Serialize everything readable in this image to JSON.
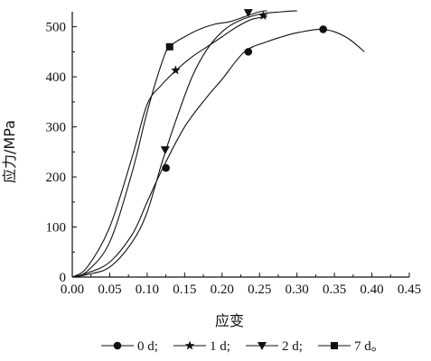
{
  "chart_data": {
    "type": "line",
    "xlabel": "应变",
    "ylabel": "应力/MPa",
    "xlim": [
      0,
      0.45
    ],
    "ylim": [
      0,
      530
    ],
    "x_ticks": [
      "0.00",
      "0.05",
      "0.10",
      "0.15",
      "0.20",
      "0.25",
      "0.30",
      "0.35",
      "0.40",
      "0.45"
    ],
    "y_ticks": [
      "0",
      "100",
      "200",
      "300",
      "400",
      "500"
    ],
    "grid": false,
    "legend_position": "bottom",
    "legend_suffix": "。",
    "series": [
      {
        "name": "0 d",
        "marker": "circle",
        "x": [
          0,
          0.02,
          0.05,
          0.08,
          0.1,
          0.12,
          0.15,
          0.18,
          0.2,
          0.23,
          0.26,
          0.28,
          0.3,
          0.33,
          0.35,
          0.37,
          0.39
        ],
        "y": [
          0,
          8,
          30,
          85,
          150,
          215,
          300,
          360,
          395,
          450,
          470,
          480,
          488,
          495,
          490,
          475,
          450
        ],
        "marker_points": [
          [
            0.125,
            218
          ],
          [
            0.235,
            450
          ],
          [
            0.335,
            495
          ]
        ]
      },
      {
        "name": "1 d",
        "marker": "star",
        "x": [
          0,
          0.02,
          0.05,
          0.08,
          0.1,
          0.12,
          0.14,
          0.16,
          0.18,
          0.2,
          0.22,
          0.24,
          0.26
        ],
        "y": [
          0,
          20,
          100,
          240,
          345,
          385,
          415,
          440,
          460,
          480,
          500,
          515,
          520
        ],
        "marker_points": [
          [
            0.138,
            413
          ],
          [
            0.255,
            522
          ]
        ]
      },
      {
        "name": "2 d",
        "marker": "triangle-down",
        "x": [
          0,
          0.02,
          0.05,
          0.08,
          0.1,
          0.12,
          0.14,
          0.16,
          0.18,
          0.2,
          0.22,
          0.25,
          0.28,
          0.3
        ],
        "y": [
          0,
          5,
          20,
          70,
          130,
          230,
          320,
          400,
          455,
          490,
          510,
          525,
          530,
          532
        ],
        "marker_points": [
          [
            0.124,
            254
          ],
          [
            0.235,
            528
          ]
        ]
      },
      {
        "name": "7 d",
        "marker": "square",
        "x": [
          0,
          0.02,
          0.05,
          0.08,
          0.1,
          0.12,
          0.13,
          0.15,
          0.17,
          0.19,
          0.21,
          0.23,
          0.25,
          0.26
        ],
        "y": [
          0,
          12,
          70,
          210,
          330,
          430,
          460,
          480,
          495,
          505,
          510,
          520,
          530,
          532
        ],
        "marker_points": [
          [
            0.13,
            460
          ]
        ]
      }
    ]
  }
}
